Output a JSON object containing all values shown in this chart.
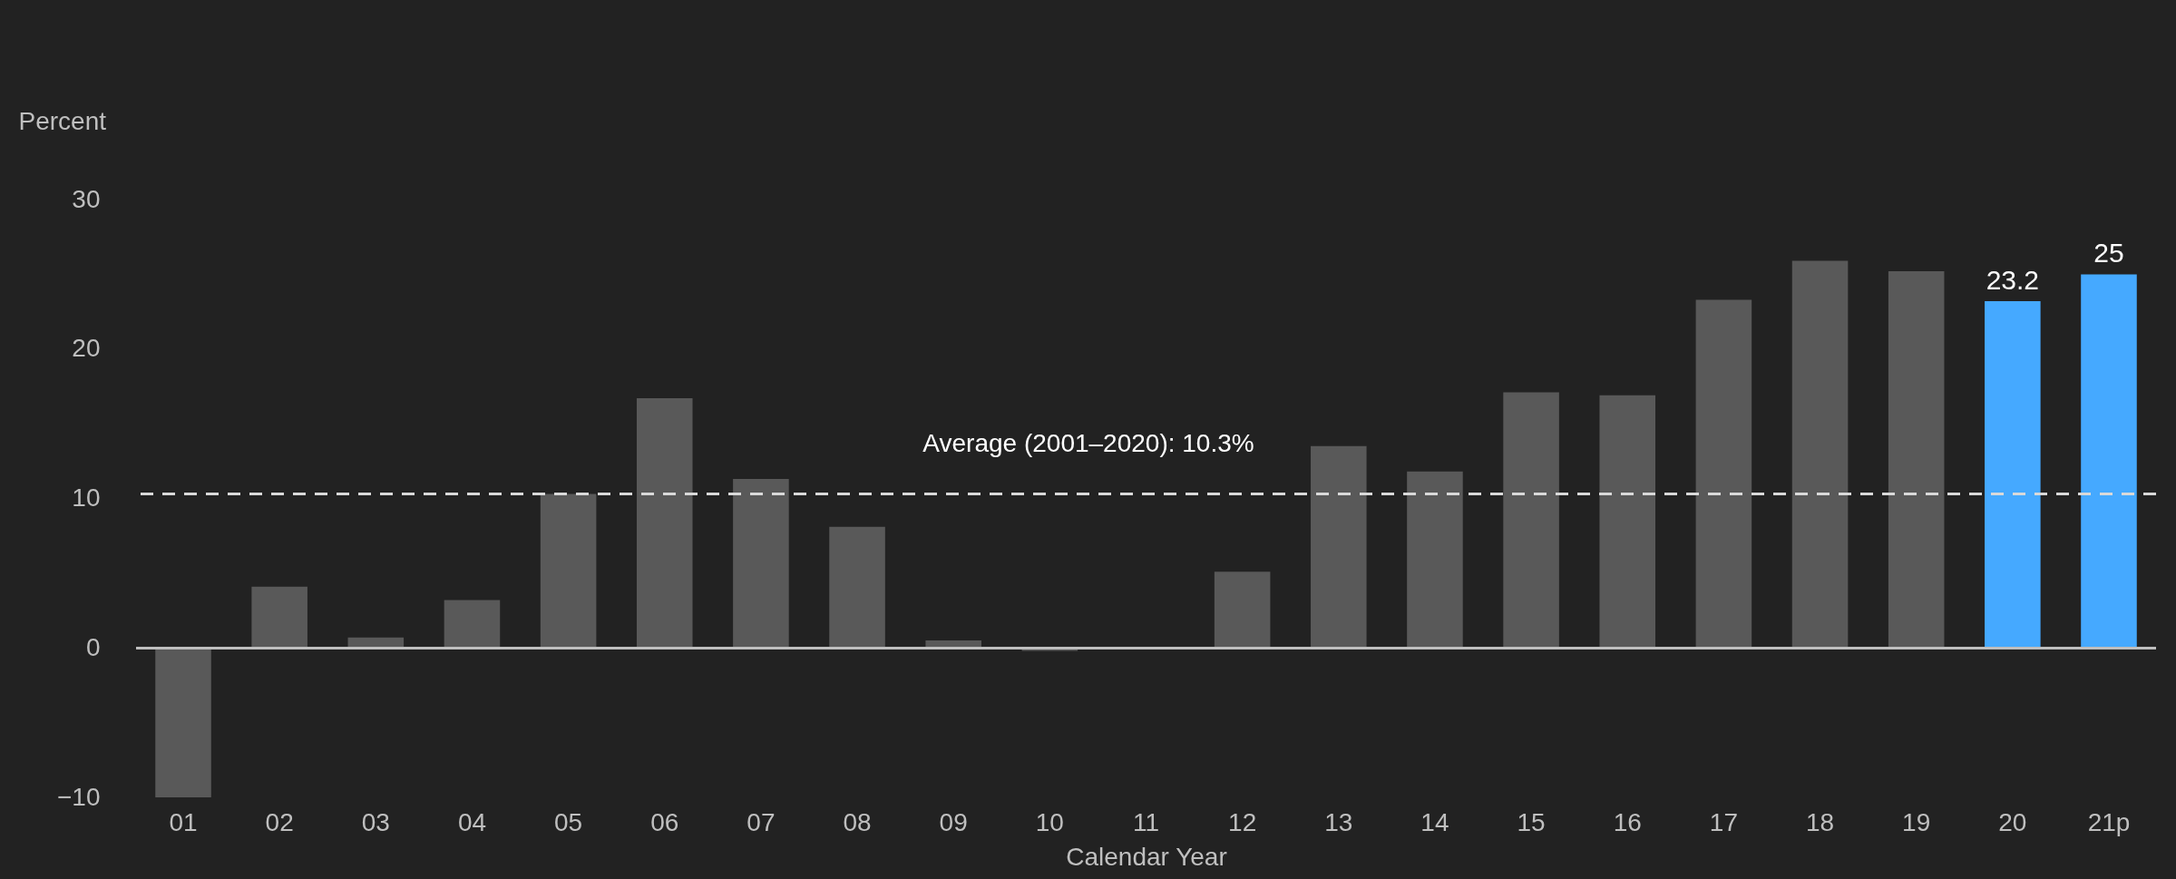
{
  "chart_data": {
    "type": "bar",
    "ylabel": "Percent",
    "xlabel": "Calendar Year",
    "categories": [
      "01",
      "02",
      "03",
      "04",
      "05",
      "06",
      "07",
      "08",
      "09",
      "10",
      "11",
      "12",
      "13",
      "14",
      "15",
      "16",
      "17",
      "18",
      "19",
      "20",
      "21p"
    ],
    "values": [
      -10,
      4.1,
      0.7,
      3.2,
      10.3,
      16.7,
      11.3,
      8.1,
      0.5,
      -0.2,
      null,
      5.1,
      13.5,
      11.8,
      17.1,
      16.9,
      23.3,
      25.9,
      25.2,
      23.2,
      25
    ],
    "colors": [
      "#595959",
      "#595959",
      "#595959",
      "#595959",
      "#595959",
      "#595959",
      "#595959",
      "#595959",
      "#595959",
      "#595959",
      "#595959",
      "#595959",
      "#595959",
      "#595959",
      "#595959",
      "#595959",
      "#595959",
      "#595959",
      "#595959",
      "#45a9ff",
      "#45a9ff"
    ],
    "value_labels": [
      null,
      null,
      null,
      null,
      null,
      null,
      null,
      null,
      null,
      null,
      null,
      null,
      null,
      null,
      null,
      null,
      null,
      null,
      null,
      "23.2",
      "25"
    ],
    "ylim": [
      -10,
      30
    ],
    "yticks": [
      -10,
      0,
      10,
      20,
      30
    ],
    "grid": false,
    "ref_lines": [
      {
        "axis": "y",
        "value": 10.3,
        "label": "Average (2001–2020): 10.3%",
        "color": "#d9d9d9",
        "line_style": "dashed"
      }
    ]
  }
}
